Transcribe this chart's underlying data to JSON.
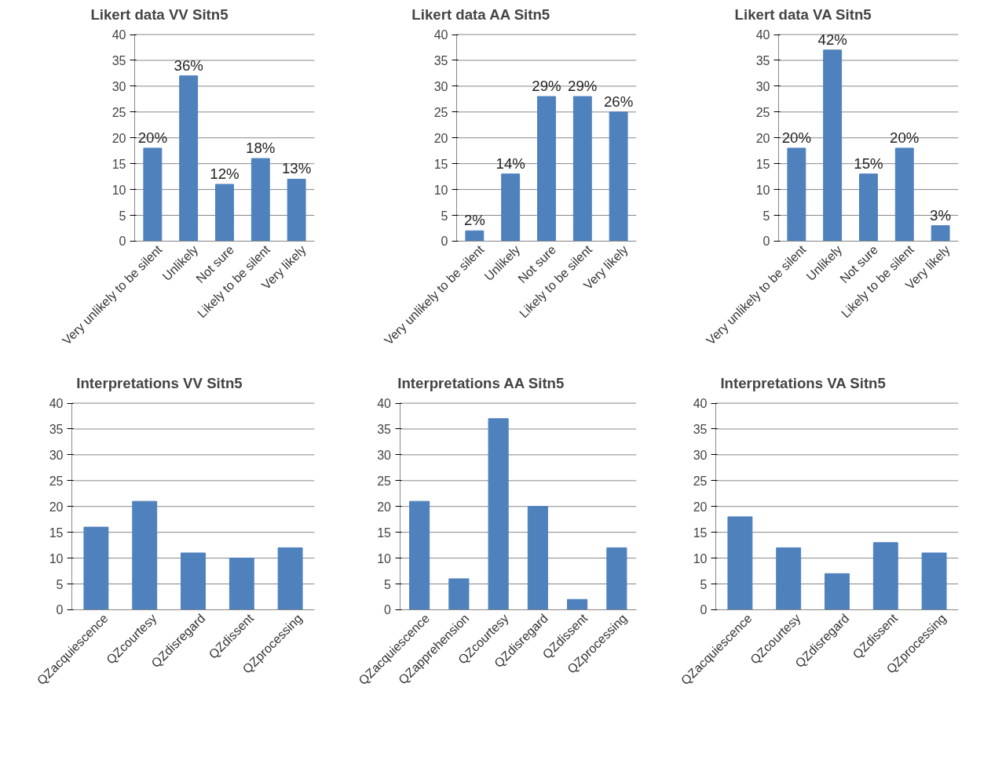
{
  "chart_data": [
    {
      "type": "bar",
      "title": "Likert data VV Sitn5",
      "categories": [
        "Very unlikely to be silent",
        "Unlikely",
        "Not sure",
        "Likely to be silent",
        "Very likely"
      ],
      "values": [
        18,
        32,
        11,
        16,
        12
      ],
      "color": "#4f81bd",
      "ylim": [
        0,
        40
      ],
      "yticks": [
        0,
        5,
        10,
        15,
        20,
        25,
        30,
        35,
        40
      ],
      "grid": "y",
      "annotations": [
        {
          "text": "20%",
          "x": "Very unlikely to be silent",
          "y": 18
        },
        {
          "text": "36%",
          "x": "Unlikely",
          "y": 32
        },
        {
          "text": "12%",
          "x": "Not sure",
          "y": 11
        },
        {
          "text": "18%",
          "x": "Likely to be silent",
          "y": 16
        },
        {
          "text": "13%",
          "x": "Very likely",
          "y": 12
        }
      ]
    },
    {
      "type": "bar",
      "title": "Likert data AA Sitn5",
      "categories": [
        "Very unlikely to be silent",
        "Unlikely",
        "Not sure",
        "Likely to be silent",
        "Very likely"
      ],
      "values": [
        2,
        13,
        28,
        28,
        25
      ],
      "color": "#4f81bd",
      "ylim": [
        0,
        40
      ],
      "yticks": [
        0,
        5,
        10,
        15,
        20,
        25,
        30,
        35,
        40
      ],
      "grid": "y",
      "annotations": [
        {
          "text": "2%",
          "x": "Very unlikely to be silent",
          "y": 2
        },
        {
          "text": "14%",
          "x": "Unlikely",
          "y": 13
        },
        {
          "text": "29%",
          "x": "Not sure",
          "y": 28
        },
        {
          "text": "29%",
          "x": "Likely to be silent",
          "y": 28
        },
        {
          "text": "26%",
          "x": "Very likely",
          "y": 25
        }
      ]
    },
    {
      "type": "bar",
      "title": "Likert data VA Sitn5",
      "categories": [
        "Very unlikely to be silent",
        "Unlikely",
        "Not sure",
        "Likely to be silent",
        "Very likely"
      ],
      "values": [
        18,
        37,
        13,
        18,
        3
      ],
      "color": "#4f81bd",
      "ylim": [
        0,
        40
      ],
      "yticks": [
        0,
        5,
        10,
        15,
        20,
        25,
        30,
        35,
        40
      ],
      "grid": "y",
      "annotations": [
        {
          "text": "20%",
          "x": "Very unlikely to be silent",
          "y": 18
        },
        {
          "text": "42%",
          "x": "Unlikely",
          "y": 37
        },
        {
          "text": "15%",
          "x": "Not sure",
          "y": 13
        },
        {
          "text": "20%",
          "x": "Likely to be silent",
          "y": 18
        },
        {
          "text": "3%",
          "x": "Very likely",
          "y": 3
        }
      ]
    },
    {
      "type": "bar",
      "title": "Interpretations VV Sitn5",
      "categories": [
        "QZacquiescence",
        "QZcourtesy",
        "QZdisregard",
        "QZdissent",
        "QZprocessing"
      ],
      "values": [
        16,
        21,
        11,
        10,
        12
      ],
      "color": "#4f81bd",
      "ylim": [
        0,
        40
      ],
      "yticks": [
        0,
        5,
        10,
        15,
        20,
        25,
        30,
        35,
        40
      ],
      "grid": "y"
    },
    {
      "type": "bar",
      "title": "Interpretations AA Sitn5",
      "categories": [
        "QZacquiescence",
        "QZapprehension",
        "QZcourtesy",
        "QZdisregard",
        "QZdissent",
        "QZprocessing"
      ],
      "values": [
        21,
        6,
        37,
        20,
        2,
        12
      ],
      "color": "#4f81bd",
      "ylim": [
        0,
        40
      ],
      "yticks": [
        0,
        5,
        10,
        15,
        20,
        25,
        30,
        35,
        40
      ],
      "grid": "y"
    },
    {
      "type": "bar",
      "title": "Interpretations VA Sitn5",
      "categories": [
        "QZacquiescence",
        "QZcourtesy",
        "QZdisregard",
        "QZdissent",
        "QZprocessing"
      ],
      "values": [
        18,
        12,
        7,
        13,
        11
      ],
      "color": "#4f81bd",
      "ylim": [
        0,
        40
      ],
      "yticks": [
        0,
        5,
        10,
        15,
        20,
        25,
        30,
        35,
        40
      ],
      "grid": "y"
    }
  ]
}
